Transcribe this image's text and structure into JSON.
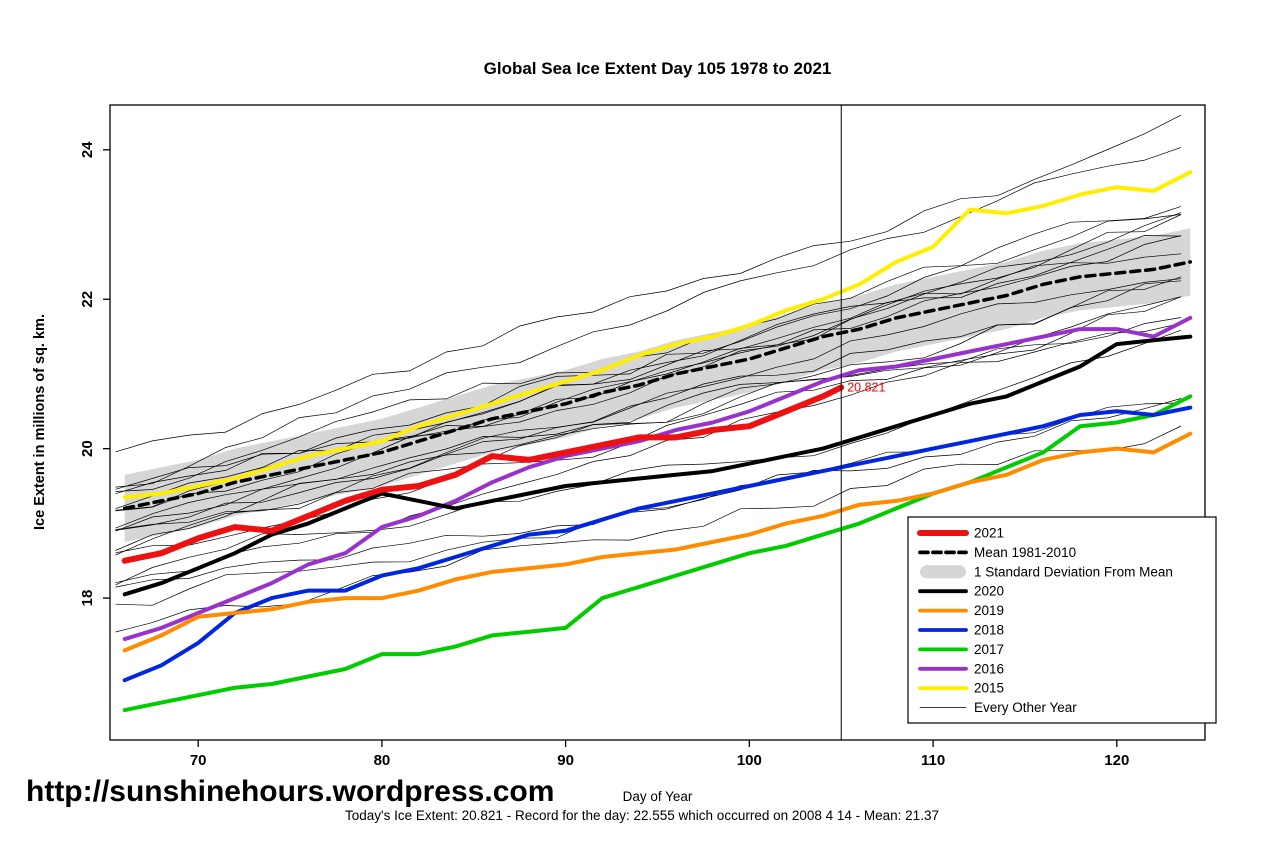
{
  "footer": {
    "url": "http://sunshinehours.wordpress.com",
    "caption": "Today's Ice Extent: 20.821  - Record for the day: 22.555 which occurred on 2008 4 14  - Mean: 21.37"
  },
  "chart_data": {
    "type": "line",
    "title": "Global Sea Ice Extent Day 105 1978 to 2021",
    "xlabel": "Day of Year",
    "ylabel": "Ice Extent in millions of sq. km.",
    "xlim": [
      65.2,
      124.8
    ],
    "ylim": [
      16.1,
      24.6
    ],
    "xticks": [
      70,
      80,
      90,
      100,
      110,
      120
    ],
    "yticks": [
      18,
      20,
      22,
      24
    ],
    "grid": false,
    "vline_day": 105,
    "annotation": {
      "text": "20.821",
      "day": 105,
      "value": 20.821,
      "color": "#ff0000"
    },
    "x": [
      66,
      68,
      70,
      72,
      74,
      76,
      78,
      80,
      82,
      84,
      86,
      88,
      90,
      92,
      94,
      96,
      98,
      100,
      102,
      104,
      106,
      108,
      110,
      112,
      114,
      116,
      118,
      120,
      122,
      124
    ],
    "mean_series": {
      "name": "Mean 1981-2010",
      "color": "#000000",
      "style": "dashed",
      "values": [
        19.2,
        19.3,
        19.4,
        19.55,
        19.65,
        19.75,
        19.85,
        19.95,
        20.1,
        20.25,
        20.4,
        20.5,
        20.6,
        20.75,
        20.85,
        21.0,
        21.1,
        21.2,
        21.35,
        21.5,
        21.6,
        21.75,
        21.85,
        21.95,
        22.05,
        22.2,
        22.3,
        22.35,
        22.4,
        22.5
      ]
    },
    "std_band": {
      "name": "1 Standard Deviation From Mean",
      "half_width": 0.45,
      "color": "#d6d6d6"
    },
    "series": [
      {
        "name": "2015",
        "color": "#ffee00",
        "width": 4,
        "values": [
          19.35,
          19.4,
          19.5,
          19.6,
          19.75,
          19.9,
          20.0,
          20.1,
          20.3,
          20.45,
          20.6,
          20.75,
          20.9,
          21.05,
          21.25,
          21.4,
          21.5,
          21.65,
          21.85,
          22.0,
          22.2,
          22.5,
          22.7,
          23.2,
          23.15,
          23.25,
          23.4,
          23.5,
          23.45,
          23.7
        ]
      },
      {
        "name": "2016",
        "color": "#9932cc",
        "width": 4,
        "values": [
          17.45,
          17.6,
          17.8,
          18.0,
          18.2,
          18.45,
          18.6,
          18.95,
          19.1,
          19.3,
          19.55,
          19.75,
          19.9,
          20.0,
          20.1,
          20.25,
          20.35,
          20.5,
          20.7,
          20.9,
          21.05,
          21.1,
          21.2,
          21.3,
          21.4,
          21.5,
          21.6,
          21.6,
          21.5,
          21.75
        ]
      },
      {
        "name": "2017",
        "color": "#00cc00",
        "width": 4,
        "values": [
          16.5,
          16.6,
          16.7,
          16.8,
          16.85,
          16.95,
          17.05,
          17.25,
          17.25,
          17.35,
          17.5,
          17.55,
          17.6,
          18.0,
          18.15,
          18.3,
          18.45,
          18.6,
          18.7,
          18.85,
          19.0,
          19.2,
          19.4,
          19.55,
          19.75,
          19.95,
          20.3,
          20.35,
          20.45,
          20.7
        ]
      },
      {
        "name": "2018",
        "color": "#0026e0",
        "width": 4,
        "values": [
          16.9,
          17.1,
          17.4,
          17.8,
          18.0,
          18.1,
          18.1,
          18.3,
          18.4,
          18.55,
          18.7,
          18.85,
          18.9,
          19.05,
          19.2,
          19.3,
          19.4,
          19.5,
          19.6,
          19.7,
          19.8,
          19.9,
          20.0,
          20.1,
          20.2,
          20.3,
          20.45,
          20.5,
          20.45,
          20.55
        ]
      },
      {
        "name": "2019",
        "color": "#ff8c00",
        "width": 4,
        "values": [
          17.3,
          17.5,
          17.75,
          17.8,
          17.85,
          17.95,
          18.0,
          18.0,
          18.1,
          18.25,
          18.35,
          18.4,
          18.45,
          18.55,
          18.6,
          18.65,
          18.75,
          18.85,
          19.0,
          19.1,
          19.25,
          19.3,
          19.4,
          19.55,
          19.65,
          19.85,
          19.95,
          20.0,
          19.95,
          20.2
        ]
      },
      {
        "name": "2020",
        "color": "#000000",
        "width": 4,
        "values": [
          18.05,
          18.2,
          18.4,
          18.6,
          18.85,
          19.0,
          19.2,
          19.4,
          19.3,
          19.2,
          19.3,
          19.4,
          19.5,
          19.55,
          19.6,
          19.65,
          19.7,
          19.8,
          19.9,
          20.0,
          20.15,
          20.3,
          20.45,
          20.6,
          20.7,
          20.9,
          21.1,
          21.4,
          21.45,
          21.5
        ]
      }
    ],
    "current_series": {
      "name": "2021",
      "color": "#ee1111",
      "width": 6,
      "x": [
        66,
        68,
        70,
        72,
        74,
        76,
        78,
        80,
        82,
        84,
        86,
        88,
        90,
        92,
        94,
        96,
        98,
        100,
        102,
        104,
        105
      ],
      "values": [
        18.5,
        18.6,
        18.8,
        18.95,
        18.9,
        19.1,
        19.3,
        19.45,
        19.5,
        19.65,
        19.9,
        19.85,
        19.95,
        20.05,
        20.15,
        20.15,
        20.25,
        20.3,
        20.5,
        20.7,
        20.82
      ]
    },
    "every_other_year": {
      "name": "Every Other Year",
      "lines": [
        {
          "start": 19.9,
          "end": 24.3
        },
        {
          "start": 19.6,
          "end": 24.0
        },
        {
          "start": 19.5,
          "end": 23.2
        },
        {
          "start": 19.4,
          "end": 23.1
        },
        {
          "start": 19.3,
          "end": 23.0
        },
        {
          "start": 19.25,
          "end": 22.9
        },
        {
          "start": 19.2,
          "end": 22.8
        },
        {
          "start": 19.1,
          "end": 22.7
        },
        {
          "start": 19.0,
          "end": 22.6
        },
        {
          "start": 18.95,
          "end": 22.5
        },
        {
          "start": 18.9,
          "end": 22.4
        },
        {
          "start": 18.8,
          "end": 22.3
        },
        {
          "start": 18.7,
          "end": 22.2
        },
        {
          "start": 18.6,
          "end": 22.1
        },
        {
          "start": 18.5,
          "end": 21.9
        },
        {
          "start": 18.3,
          "end": 21.7
        },
        {
          "start": 18.2,
          "end": 21.5
        },
        {
          "start": 18.1,
          "end": 20.9
        },
        {
          "start": 17.8,
          "end": 20.8
        },
        {
          "start": 17.6,
          "end": 20.6
        }
      ]
    },
    "legend": {
      "position": "bottom-right",
      "entries": [
        {
          "label": "2021",
          "swatch": "thick",
          "color": "#ee1111"
        },
        {
          "label": "Mean 1981-2010",
          "swatch": "dashed",
          "color": "#000000"
        },
        {
          "label": "1 Standard Deviation From Mean",
          "swatch": "band",
          "color": "#d6d6d6"
        },
        {
          "label": "2020",
          "swatch": "medium",
          "color": "#000000"
        },
        {
          "label": "2019",
          "swatch": "medium",
          "color": "#ff8c00"
        },
        {
          "label": "2018",
          "swatch": "medium",
          "color": "#0026e0"
        },
        {
          "label": "2017",
          "swatch": "medium",
          "color": "#00cc00"
        },
        {
          "label": "2016",
          "swatch": "medium",
          "color": "#9932cc"
        },
        {
          "label": "2015",
          "swatch": "medium",
          "color": "#ffee00"
        },
        {
          "label": "Every Other Year",
          "swatch": "thin",
          "color": "#000000"
        }
      ]
    }
  }
}
